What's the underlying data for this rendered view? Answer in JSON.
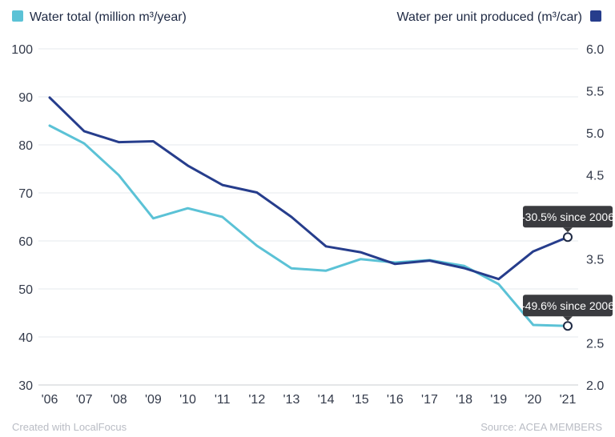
{
  "chart_data": {
    "type": "line",
    "x": [
      "'06",
      "'07",
      "'08",
      "'09",
      "'10",
      "'11",
      "'12",
      "'13",
      "'14",
      "'15",
      "'16",
      "'17",
      "'18",
      "'19",
      "'20",
      "'21"
    ],
    "series": [
      {
        "name": "Water total (million m³/year)",
        "axis": "left",
        "color": "#5bc2d6",
        "values": [
          84.0,
          80.3,
          73.7,
          64.7,
          66.8,
          65.0,
          59.0,
          54.3,
          53.8,
          56.2,
          55.5,
          56.0,
          54.8,
          51.0,
          42.5,
          42.3
        ]
      },
      {
        "name": "Water per unit produced (m³/car)",
        "axis": "right",
        "color": "#263d8c",
        "values": [
          5.42,
          5.02,
          4.89,
          4.9,
          4.61,
          4.38,
          4.29,
          4.0,
          3.65,
          3.58,
          3.44,
          3.48,
          3.39,
          3.26,
          3.59,
          3.76
        ]
      }
    ],
    "y_left": {
      "min": 30,
      "max": 100,
      "ticks": [
        30,
        40,
        50,
        60,
        70,
        80,
        90,
        100
      ]
    },
    "y_right": {
      "min": 2.0,
      "max": 6.0,
      "ticks": [
        "2.0",
        "2.5",
        "3.0",
        "3.5",
        "4.0",
        "4.5",
        "5.0",
        "5.5",
        "6.0"
      ]
    },
    "grid": true,
    "legend_placement": "top",
    "annotations": [
      {
        "text": "-30.5% since 2006",
        "series": 1,
        "index": 15
      },
      {
        "text": "-49.6% since 2006",
        "series": 0,
        "index": 15
      }
    ],
    "footer_left": "Created with LocalFocus",
    "footer_right": "Source:  ACEA MEMBERS"
  }
}
